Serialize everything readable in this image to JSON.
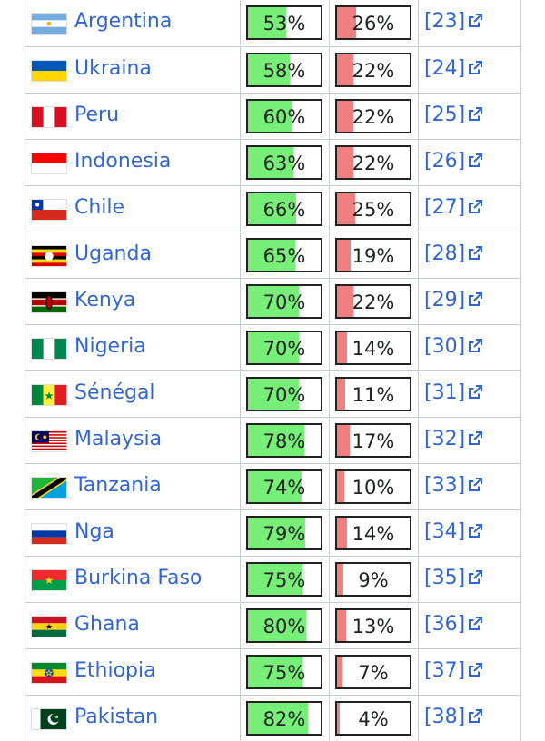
{
  "rows": [
    {
      "country": "Argentina",
      "flag": "argentina-flag",
      "support": 53,
      "oppose": 26,
      "ref": "[23]"
    },
    {
      "country": "Ukraina",
      "flag": "ukraine-flag",
      "support": 58,
      "oppose": 22,
      "ref": "[24]"
    },
    {
      "country": "Peru",
      "flag": "peru-flag",
      "support": 60,
      "oppose": 22,
      "ref": "[25]"
    },
    {
      "country": "Indonesia",
      "flag": "indonesia-flag",
      "support": 63,
      "oppose": 22,
      "ref": "[26]"
    },
    {
      "country": "Chile",
      "flag": "chile-flag",
      "support": 66,
      "oppose": 25,
      "ref": "[27]"
    },
    {
      "country": "Uganda",
      "flag": "uganda-flag",
      "support": 65,
      "oppose": 19,
      "ref": "[28]"
    },
    {
      "country": "Kenya",
      "flag": "kenya-flag",
      "support": 70,
      "oppose": 22,
      "ref": "[29]"
    },
    {
      "country": "Nigeria",
      "flag": "nigeria-flag",
      "support": 70,
      "oppose": 14,
      "ref": "[30]"
    },
    {
      "country": "Sénégal",
      "flag": "senegal-flag",
      "support": 70,
      "oppose": 11,
      "ref": "[31]"
    },
    {
      "country": "Malaysia",
      "flag": "malaysia-flag",
      "support": 78,
      "oppose": 17,
      "ref": "[32]"
    },
    {
      "country": "Tanzania",
      "flag": "tanzania-flag",
      "support": 74,
      "oppose": 10,
      "ref": "[33]"
    },
    {
      "country": "Nga",
      "flag": "russia-flag",
      "support": 79,
      "oppose": 14,
      "ref": "[34]"
    },
    {
      "country": "Burkina Faso",
      "flag": "burkina-faso-flag",
      "support": 75,
      "oppose": 9,
      "ref": "[35]"
    },
    {
      "country": "Ghana",
      "flag": "ghana-flag",
      "support": 80,
      "oppose": 13,
      "ref": "[36]"
    },
    {
      "country": "Ethiopia",
      "flag": "ethiopia-flag",
      "support": 75,
      "oppose": 7,
      "ref": "[37]"
    },
    {
      "country": "Pakistan",
      "flag": "pakistan-flag",
      "support": 82,
      "oppose": 4,
      "ref": "[38]"
    }
  ],
  "colors": {
    "link": "#3366cc",
    "support_fill": "#77ee77",
    "oppose_fill": "#f08080",
    "border": "#c8ccd1"
  },
  "icons": {
    "external_link": "external-link-icon"
  }
}
